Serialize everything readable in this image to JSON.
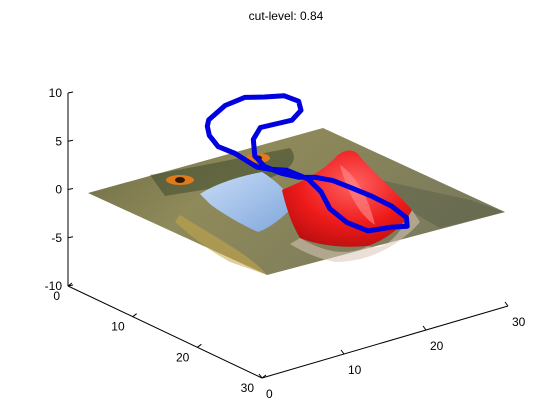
{
  "chart_data": {
    "type": "surface3d",
    "title": "cut-level: 0.84",
    "xlabel": "",
    "ylabel": "",
    "zlabel": "",
    "xlim": [
      0,
      30
    ],
    "ylim": [
      0,
      30
    ],
    "zlim": [
      -10,
      10
    ],
    "x_ticks": [
      0,
      10,
      20,
      30
    ],
    "y_ticks": [
      0,
      10,
      20,
      30
    ],
    "z_ticks": [
      -10,
      -5,
      0,
      5,
      10
    ],
    "grid": false,
    "cut_level": 0.84,
    "surface": {
      "texture": "image (baboon face)",
      "peak": {
        "x": 12,
        "y": 20,
        "z": 4.5,
        "color": "#ff2020"
      },
      "trough": {
        "x": 14,
        "y": 7,
        "z": -3.8,
        "color": "#aac8f0"
      }
    },
    "contour_color": "#0000e0",
    "contour_points": [
      [
        14,
        4,
        5.0
      ],
      [
        16,
        4,
        6.0
      ],
      [
        18,
        4.5,
        6.5
      ],
      [
        20,
        5,
        6.2
      ],
      [
        22,
        5.5,
        6.0
      ],
      [
        23,
        6.5,
        5.5
      ],
      [
        22.5,
        7.5,
        5.0
      ],
      [
        21,
        8,
        4.5
      ],
      [
        19,
        8,
        4.6
      ],
      [
        17,
        8.2,
        4.8
      ],
      [
        15.5,
        9,
        4.2
      ],
      [
        14.5,
        10.5,
        3.2
      ],
      [
        14.5,
        12,
        2.6
      ],
      [
        15,
        14,
        2.4
      ],
      [
        15.5,
        16,
        2.5
      ],
      [
        16,
        18,
        3.0
      ],
      [
        16.5,
        20,
        3.2
      ],
      [
        17,
        22,
        3.0
      ],
      [
        18,
        24,
        2.5
      ],
      [
        19,
        26,
        1.8
      ],
      [
        19.2,
        28,
        1.2
      ],
      [
        18.5,
        29,
        0.8
      ],
      [
        16.5,
        29,
        1.2
      ],
      [
        14.5,
        28,
        1.0
      ],
      [
        13.5,
        26,
        1.5
      ],
      [
        13,
        24,
        2.4
      ],
      [
        13.5,
        22,
        3.4
      ],
      [
        13.5,
        20,
        4.1
      ],
      [
        12.5,
        18,
        4.6
      ],
      [
        12,
        16,
        4.2
      ],
      [
        12,
        14,
        3.8
      ],
      [
        12.5,
        12,
        3.6
      ],
      [
        12.5,
        10,
        3.8
      ],
      [
        12,
        8,
        4.0
      ],
      [
        12.5,
        6,
        4.4
      ],
      [
        13.2,
        4.8,
        4.8
      ]
    ]
  }
}
